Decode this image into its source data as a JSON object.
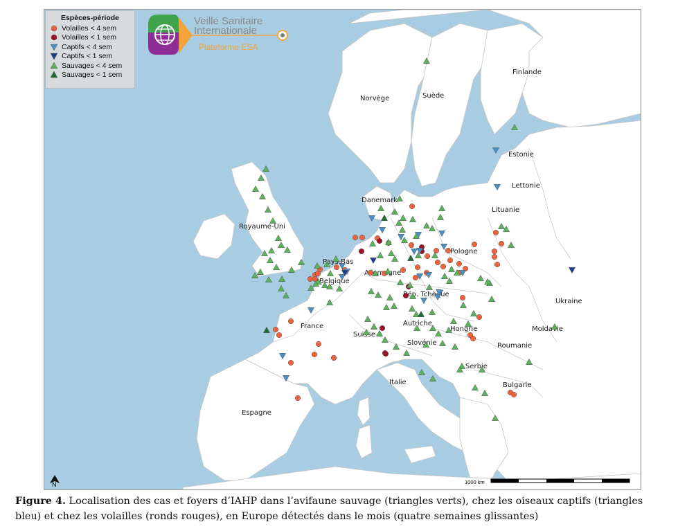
{
  "legend": {
    "title": "Espèces-période",
    "items": [
      {
        "label": "Volailles < 4 sem",
        "shape": "circle",
        "color": "#f0623b"
      },
      {
        "label": "Volailles < 1 sem",
        "shape": "circle",
        "color": "#9b1025"
      },
      {
        "label": "Captifs < 4 sem",
        "shape": "tri-down",
        "color": "#4a90c8"
      },
      {
        "label": "Captifs < 1 sem",
        "shape": "tri-down",
        "color": "#1f3f8c"
      },
      {
        "label": "Sauvages < 4 sem",
        "shape": "tri-up",
        "color": "#5ab35a"
      },
      {
        "label": "Sauvages < 1 sem",
        "shape": "tri-up",
        "color": "#1e6b35"
      }
    ]
  },
  "logo": {
    "line1": "Veille Sanitaire",
    "line2": "Internationale",
    "line3": "Plateforme ESA"
  },
  "countries": [
    {
      "name": "Finlande"
    },
    {
      "name": "Norvège"
    },
    {
      "name": "Suède"
    },
    {
      "name": "Estonie"
    },
    {
      "name": "Lettonie"
    },
    {
      "name": "Danemark"
    },
    {
      "name": "Lituanie"
    },
    {
      "name": "Royaume-Uni"
    },
    {
      "name": "Pologne"
    },
    {
      "name": "Pays-Bas"
    },
    {
      "name": "Allemagne"
    },
    {
      "name": "Belgique"
    },
    {
      "name": "Rép. Tchèque"
    },
    {
      "name": "Ukraine"
    },
    {
      "name": "France"
    },
    {
      "name": "Autriche"
    },
    {
      "name": "Hongrie"
    },
    {
      "name": "Moldavie"
    },
    {
      "name": "Suisse"
    },
    {
      "name": "Slovénie"
    },
    {
      "name": "Roumanie"
    },
    {
      "name": "Serbie"
    },
    {
      "name": "Italie"
    },
    {
      "name": "Bulgarie"
    },
    {
      "name": "Espagne"
    }
  ],
  "north_arrow": "N",
  "scale_bar": {
    "label": "1000 km"
  },
  "caption": {
    "label": "Figure 4.",
    "text": " Localisation des cas et foyers d’IAHP dans l’avifaune sauvage (triangles verts), chez les oiseaux captifs (triangles bleu) et chez les volailles (ronds rouges), en Europe détectés dans le mois (quatre semaines glissantes)"
  },
  "colors": {
    "sea": "#a8cde2",
    "land": "#ffffff",
    "border": "#bcbcbc"
  }
}
